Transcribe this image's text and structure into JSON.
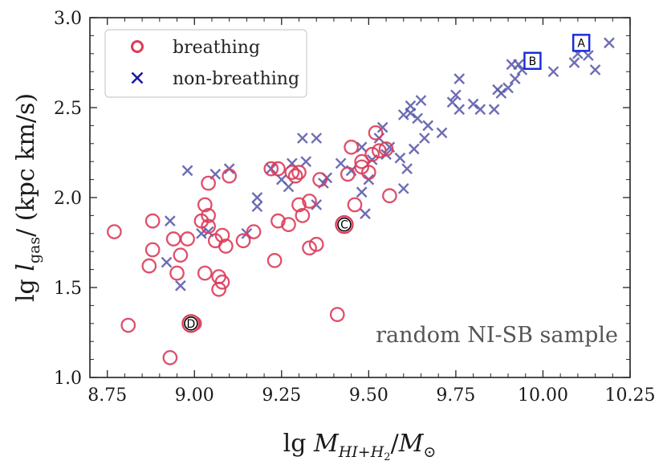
{
  "chart_data": {
    "type": "scatter",
    "xlabel": "lg M_{HI+H₂}/M_⊙",
    "ylabel": "lg l_gas/ (kpc km/s)",
    "xlim": [
      8.7,
      10.25
    ],
    "ylim": [
      1.0,
      3.0
    ],
    "xticks": [
      "8.75",
      "9.00",
      "9.25",
      "9.50",
      "9.75",
      "10.00",
      "10.25"
    ],
    "yticks": [
      "1.0",
      "1.5",
      "2.0",
      "2.5",
      "3.0"
    ],
    "grid": false,
    "legend_placement": "top-left",
    "annotation": "random NI-SB sample",
    "colors": {
      "breathing": "#dc3c5a",
      "non_breathing": "#5a5aaa",
      "highlight_square": "#1428dc",
      "axis": "#222222"
    },
    "series": [
      {
        "name": "breathing",
        "marker": "circle",
        "points": [
          [
            8.77,
            1.81
          ],
          [
            8.81,
            1.29
          ],
          [
            8.87,
            1.62
          ],
          [
            8.88,
            1.87
          ],
          [
            8.88,
            1.71
          ],
          [
            8.93,
            1.11
          ],
          [
            8.94,
            1.77
          ],
          [
            8.95,
            1.58
          ],
          [
            8.96,
            1.68
          ],
          [
            8.98,
            1.77
          ],
          [
            9.0,
            1.3
          ],
          [
            9.02,
            1.87
          ],
          [
            9.03,
            1.96
          ],
          [
            9.03,
            1.58
          ],
          [
            9.04,
            1.9
          ],
          [
            9.04,
            1.84
          ],
          [
            9.04,
            2.08
          ],
          [
            9.06,
            1.76
          ],
          [
            9.07,
            1.56
          ],
          [
            9.07,
            1.49
          ],
          [
            9.08,
            1.53
          ],
          [
            9.08,
            1.79
          ],
          [
            9.09,
            1.73
          ],
          [
            9.1,
            2.12
          ],
          [
            9.14,
            1.76
          ],
          [
            9.17,
            1.81
          ],
          [
            9.22,
            2.16
          ],
          [
            9.23,
            1.65
          ],
          [
            9.24,
            2.16
          ],
          [
            9.24,
            1.87
          ],
          [
            9.27,
            1.85
          ],
          [
            9.28,
            2.14
          ],
          [
            9.29,
            2.12
          ],
          [
            9.3,
            2.14
          ],
          [
            9.3,
            1.96
          ],
          [
            9.31,
            1.9
          ],
          [
            9.33,
            1.72
          ],
          [
            9.33,
            1.98
          ],
          [
            9.35,
            1.74
          ],
          [
            9.36,
            2.1
          ],
          [
            9.41,
            1.35
          ],
          [
            9.43,
            1.86
          ],
          [
            9.44,
            2.13
          ],
          [
            9.45,
            2.28
          ],
          [
            9.46,
            1.96
          ],
          [
            9.48,
            2.17
          ],
          [
            9.48,
            2.2
          ],
          [
            9.5,
            2.14
          ],
          [
            9.51,
            2.24
          ],
          [
            9.52,
            2.36
          ],
          [
            9.53,
            2.26
          ],
          [
            9.55,
            2.27
          ],
          [
            9.56,
            2.01
          ]
        ]
      },
      {
        "name": "non-breathing",
        "marker": "x",
        "points": [
          [
            8.92,
            1.64
          ],
          [
            8.93,
            1.87
          ],
          [
            8.96,
            1.51
          ],
          [
            8.98,
            2.15
          ],
          [
            9.02,
            1.8
          ],
          [
            9.04,
            1.81
          ],
          [
            9.06,
            2.13
          ],
          [
            9.1,
            2.16
          ],
          [
            9.15,
            1.8
          ],
          [
            9.18,
            2.0
          ],
          [
            9.18,
            1.95
          ],
          [
            9.22,
            2.16
          ],
          [
            9.25,
            2.1
          ],
          [
            9.27,
            2.06
          ],
          [
            9.28,
            2.19
          ],
          [
            9.31,
            2.33
          ],
          [
            9.32,
            2.2
          ],
          [
            9.35,
            2.33
          ],
          [
            9.35,
            1.96
          ],
          [
            9.37,
            2.08
          ],
          [
            9.38,
            2.11
          ],
          [
            9.42,
            2.19
          ],
          [
            9.45,
            2.15
          ],
          [
            9.48,
            2.28
          ],
          [
            9.48,
            2.03
          ],
          [
            9.49,
            1.91
          ],
          [
            9.5,
            2.1
          ],
          [
            9.51,
            2.21
          ],
          [
            9.53,
            2.33
          ],
          [
            9.54,
            2.39
          ],
          [
            9.55,
            2.24
          ],
          [
            9.56,
            2.28
          ],
          [
            9.59,
            2.22
          ],
          [
            9.6,
            2.46
          ],
          [
            9.6,
            2.05
          ],
          [
            9.61,
            2.16
          ],
          [
            9.62,
            2.51
          ],
          [
            9.62,
            2.47
          ],
          [
            9.63,
            2.27
          ],
          [
            9.64,
            2.44
          ],
          [
            9.65,
            2.54
          ],
          [
            9.66,
            2.33
          ],
          [
            9.67,
            2.4
          ],
          [
            9.71,
            2.36
          ],
          [
            9.74,
            2.53
          ],
          [
            9.75,
            2.57
          ],
          [
            9.76,
            2.66
          ],
          [
            9.76,
            2.49
          ],
          [
            9.8,
            2.52
          ],
          [
            9.82,
            2.49
          ],
          [
            9.86,
            2.49
          ],
          [
            9.87,
            2.6
          ],
          [
            9.88,
            2.58
          ],
          [
            9.9,
            2.61
          ],
          [
            9.91,
            2.74
          ],
          [
            9.92,
            2.66
          ],
          [
            9.93,
            2.74
          ],
          [
            9.94,
            2.71
          ],
          [
            10.03,
            2.7
          ],
          [
            10.09,
            2.75
          ],
          [
            10.1,
            2.8
          ],
          [
            10.13,
            2.79
          ],
          [
            10.15,
            2.71
          ],
          [
            10.19,
            2.86
          ]
        ]
      }
    ],
    "highlighted": [
      {
        "label": "A",
        "marker": "square",
        "x": 10.11,
        "y": 2.86
      },
      {
        "label": "B",
        "marker": "square",
        "x": 9.97,
        "y": 2.76
      },
      {
        "label": "C",
        "marker": "circle",
        "x": 9.43,
        "y": 1.85
      },
      {
        "label": "D",
        "marker": "circle",
        "x": 8.99,
        "y": 1.3
      }
    ]
  }
}
